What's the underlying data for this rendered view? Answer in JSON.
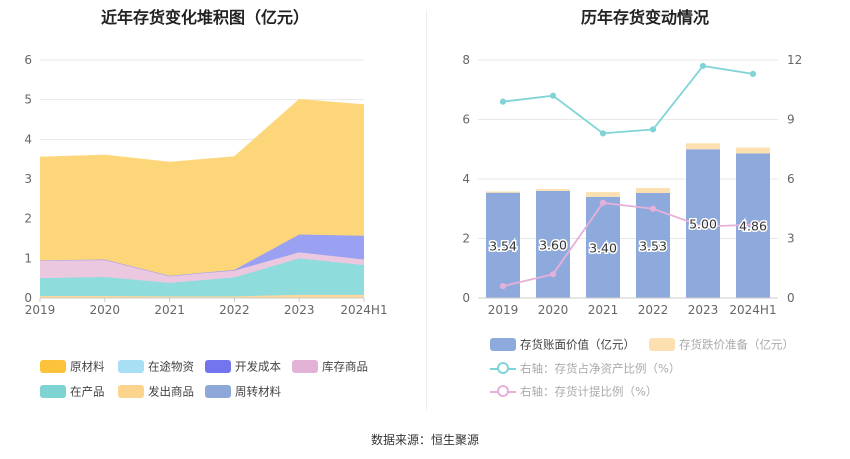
{
  "left_title": "近年存货变化堆积图（亿元）",
  "right_title": "历年存货变动情况",
  "source": "数据来源：恒生聚源",
  "chart_data": [
    {
      "type": "area",
      "stacked": true,
      "title": "近年存货变化堆积图（亿元）",
      "categories": [
        "2019",
        "2020",
        "2021",
        "2022",
        "2023",
        "2024H1"
      ],
      "ylim": [
        0,
        6
      ],
      "yticks": [
        "0",
        "1",
        "2",
        "3",
        "4",
        "5",
        "6"
      ],
      "grid": true,
      "legend_position": "bottom",
      "series": [
        {
          "name": "发出商品",
          "color": "#fcd89a",
          "values": [
            0.05,
            0.05,
            0.04,
            0.04,
            0.08,
            0.08
          ]
        },
        {
          "name": "在产品",
          "color": "#8edcdc",
          "values": [
            0.45,
            0.48,
            0.34,
            0.48,
            0.92,
            0.75
          ]
        },
        {
          "name": "库存商品",
          "color": "#ebc8df",
          "values": [
            0.45,
            0.44,
            0.18,
            0.17,
            0.15,
            0.14
          ]
        },
        {
          "name": "开发成本",
          "color": "#9aa0f2",
          "values": [
            0.0,
            0.0,
            0.0,
            0.02,
            0.45,
            0.6
          ]
        },
        {
          "name": "原材料",
          "color": "#fdd67a",
          "values": [
            2.6,
            2.63,
            2.86,
            2.85,
            3.4,
            3.3
          ]
        },
        {
          "name": "在途物资",
          "color": "#a8dff5",
          "values": [
            0,
            0,
            0,
            0,
            0,
            0
          ]
        },
        {
          "name": "周转材料",
          "color": "#8ea9d8",
          "values": [
            0,
            0,
            0,
            0,
            0,
            0
          ]
        }
      ],
      "legend": [
        {
          "name": "原材料",
          "color": "#fcc33a"
        },
        {
          "name": "在途物资",
          "color": "#a8dff5"
        },
        {
          "name": "开发成本",
          "color": "#7375ee"
        },
        {
          "name": "库存商品",
          "color": "#e3b2d7"
        },
        {
          "name": "在产品",
          "color": "#7ed3d3"
        },
        {
          "name": "发出商品",
          "color": "#fcd48e"
        },
        {
          "name": "周转材料",
          "color": "#8ea9d8"
        }
      ]
    },
    {
      "type": "bar",
      "title": "历年存货变动情况",
      "categories": [
        "2019",
        "2020",
        "2021",
        "2022",
        "2023",
        "2024H1"
      ],
      "ylim_left": [
        0,
        8
      ],
      "yticks_left": [
        "0",
        "2",
        "4",
        "6",
        "8"
      ],
      "ylim_right": [
        0,
        12
      ],
      "yticks_right": [
        "0",
        "3",
        "6",
        "9",
        "12"
      ],
      "legend_position": "bottom",
      "series": [
        {
          "name": "存货账面价值（亿元）",
          "type": "bar",
          "axis": "left",
          "color": "#8eaadc",
          "values": [
            3.54,
            3.6,
            3.4,
            3.53,
            5.0,
            4.86
          ],
          "labels": [
            "3.54",
            "3.60",
            "3.40",
            "3.53",
            "5.00",
            "4.86"
          ]
        },
        {
          "name": "存货跌价准备（亿元）",
          "type": "bar-stack",
          "axis": "left",
          "color": "#fde0b0",
          "values": [
            0.04,
            0.06,
            0.16,
            0.17,
            0.2,
            0.2
          ]
        },
        {
          "name": "右轴：存货占净资产比例（%）",
          "type": "line",
          "axis": "right",
          "color": "#7fd4d8",
          "values": [
            9.9,
            10.2,
            8.3,
            8.5,
            11.7,
            11.3
          ]
        },
        {
          "name": "右轴：存货计提比例（%）",
          "type": "line",
          "axis": "right",
          "color": "#e6b0da",
          "values": [
            0.6,
            1.2,
            4.8,
            4.5,
            3.6,
            3.7
          ]
        }
      ]
    }
  ]
}
